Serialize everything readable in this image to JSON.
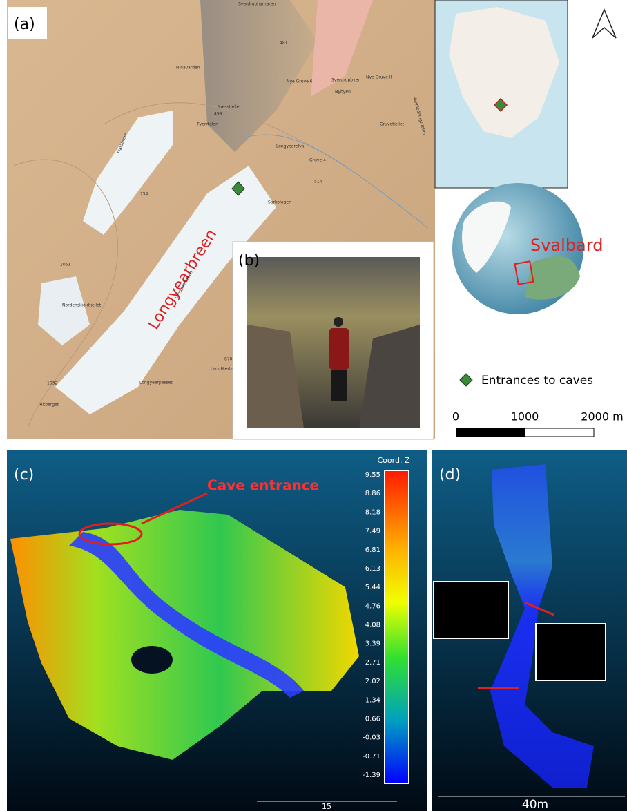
{
  "panel_a": {
    "label": "(a)",
    "glacier_name": "Longyearbreen",
    "place_names": [
      "Sverdruphamaren",
      "Ninavarden",
      "Nye Gruve 6",
      "Sverdrupbyen",
      "Nybyen",
      "Nye Gruve II",
      "Gruvefjellet",
      "Næsstjellet",
      "499",
      "Tverrtalen",
      "Longyearelva",
      "Gruve 4",
      "Sarkofagen",
      "Platåbreen",
      "754",
      "514",
      "481",
      "1051",
      "Nordenskiöldfjellet",
      "Longyearbreen",
      "870",
      "Lars Hiertafjellet",
      "Longyearpasset",
      "1032",
      "Teltberget",
      "Vannledningsdalen"
    ],
    "globe_label": "Svalbard",
    "legend": "Entrances to caves",
    "scale_labels": [
      "0",
      "1000",
      "2000 m"
    ]
  },
  "panel_b": {
    "label": "(b)"
  },
  "panel_c": {
    "label": "(c)",
    "annotation": "Cave entrance",
    "colorbar_title": "Coord. Z",
    "colorbar_ticks": [
      "9.55",
      "8.86",
      "8.18",
      "7.49",
      "6.81",
      "6.13",
      "5.44",
      "4.76",
      "4.08",
      "3.39",
      "2.71",
      "2.02",
      "1.34",
      "0.66",
      "-0.03",
      "-0.71",
      "-1.39"
    ],
    "scale_label": "15"
  },
  "panel_d": {
    "label": "(d)",
    "scale_label": "40m"
  }
}
